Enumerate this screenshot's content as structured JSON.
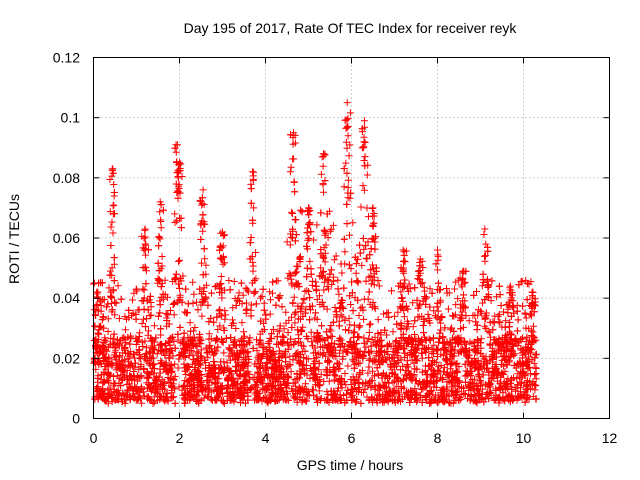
{
  "chart_data": {
    "type": "scatter",
    "title": "Day 195 of 2017, Rate Of TEC Index for receiver reyk",
    "xlabel": "GPS time / hours",
    "ylabel": "ROTI / TECUs",
    "xlim": [
      0,
      12
    ],
    "ylim": [
      0,
      0.12
    ],
    "xticks": [
      0,
      2,
      4,
      6,
      8,
      10,
      12
    ],
    "yticks": [
      0,
      0.02,
      0.04,
      0.06,
      0.08,
      0.1,
      0.12
    ],
    "xtick_labels": [
      "0",
      "2",
      "4",
      "6",
      "8",
      "10",
      "12"
    ],
    "ytick_labels": [
      "0",
      "0.02",
      "0.04",
      "0.06",
      "0.08",
      "0.1",
      "0.12"
    ],
    "grid": true,
    "marker": "+",
    "color": "#ff0000",
    "x_data_range": [
      0,
      10.3
    ],
    "series": [
      {
        "name": "ROTI",
        "note": "dense scatter, base 0.005-0.03 across 0-10.3 h; peaks listed below",
        "peaks": [
          {
            "x": 0.1,
            "y": 0.042
          },
          {
            "x": 0.45,
            "y": 0.083
          },
          {
            "x": 1.2,
            "y": 0.063
          },
          {
            "x": 1.55,
            "y": 0.072
          },
          {
            "x": 1.95,
            "y": 0.091
          },
          {
            "x": 2.0,
            "y": 0.085
          },
          {
            "x": 2.55,
            "y": 0.076
          },
          {
            "x": 3.0,
            "y": 0.062
          },
          {
            "x": 3.7,
            "y": 0.082
          },
          {
            "x": 4.65,
            "y": 0.095
          },
          {
            "x": 5.0,
            "y": 0.07
          },
          {
            "x": 5.35,
            "y": 0.088
          },
          {
            "x": 5.9,
            "y": 0.105
          },
          {
            "x": 6.3,
            "y": 0.099
          },
          {
            "x": 6.5,
            "y": 0.07
          },
          {
            "x": 7.2,
            "y": 0.056
          },
          {
            "x": 7.6,
            "y": 0.053
          },
          {
            "x": 8.0,
            "y": 0.056
          },
          {
            "x": 8.6,
            "y": 0.049
          },
          {
            "x": 9.1,
            "y": 0.063
          },
          {
            "x": 9.7,
            "y": 0.044
          },
          {
            "x": 10.2,
            "y": 0.042
          }
        ]
      }
    ]
  }
}
